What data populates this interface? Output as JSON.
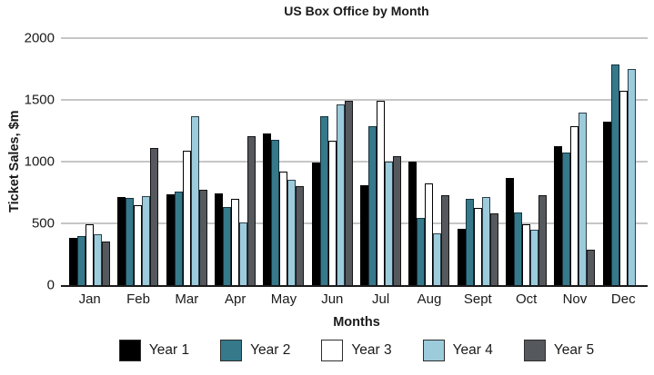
{
  "chart_data": {
    "type": "bar",
    "title": "US Box Office by Month",
    "xlabel": "Months",
    "ylabel": "Ticket Sales, $m",
    "ylim": [
      0,
      2000
    ],
    "yticks": [
      0,
      500,
      1000,
      1500,
      2000
    ],
    "grid": true,
    "legend_position": "bottom",
    "categories": [
      "Jan",
      "Feb",
      "Mar",
      "Apr",
      "May",
      "Jun",
      "Jul",
      "Aug",
      "Sept",
      "Oct",
      "Nov",
      "Dec"
    ],
    "series": [
      {
        "name": "Year 1",
        "color": "#000000",
        "border_color": "#000000",
        "values": [
          385,
          710,
          735,
          740,
          1230,
          990,
          810,
          1000,
          455,
          870,
          1125,
          1320
        ]
      },
      {
        "name": "Year 2",
        "color": "#35798b",
        "border_color": "#16333d",
        "values": [
          400,
          705,
          755,
          635,
          1175,
          1370,
          1285,
          545,
          695,
          590,
          1075,
          1790
        ]
      },
      {
        "name": "Year 3",
        "color": "#ffffff",
        "border_color": "#000000",
        "values": [
          490,
          650,
          1090,
          700,
          920,
          1170,
          1490,
          825,
          625,
          495,
          1290,
          1570
        ]
      },
      {
        "name": "Year 4",
        "color": "#9ccbdc",
        "border_color": "#2c3e48",
        "values": [
          410,
          720,
          1370,
          505,
          850,
          1465,
          1000,
          420,
          710,
          445,
          1400,
          1750
        ]
      },
      {
        "name": "Year 5",
        "color": "#55585c",
        "border_color": "#141414",
        "values": [
          350,
          1110,
          775,
          1205,
          805,
          1490,
          1045,
          730,
          580,
          730,
          285,
          null
        ]
      }
    ],
    "colors": {
      "gridline": "#c6c6c6",
      "axis": "#1a1a1a",
      "text": "#1a1a1a"
    }
  }
}
